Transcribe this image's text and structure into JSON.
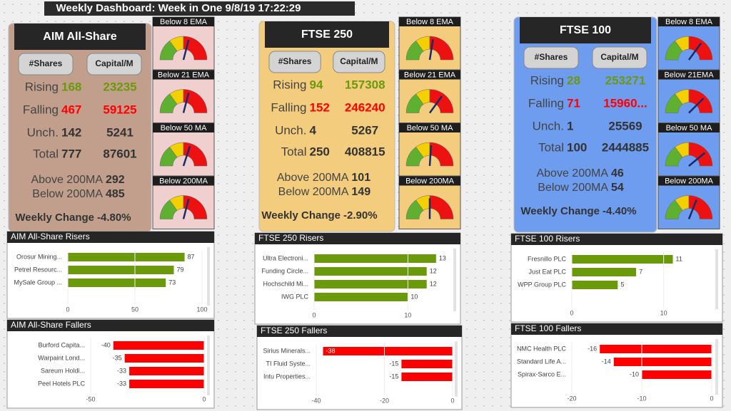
{
  "title": "Weekly Dashboard: Week in One 9/8/19 17:22:29",
  "gauge_range": [
    0,
    100
  ],
  "panels": [
    {
      "name": "AIM All-Share",
      "color": "#c29f8c",
      "gauge_color": "#f0cfcf",
      "col_shares": "#Shares",
      "col_capital": "Capital/M",
      "rows": [
        {
          "label": "Rising",
          "shares": 168,
          "capital": 23235
        },
        {
          "label": "Falling",
          "shares": 467,
          "capital": 59125
        },
        {
          "label": "Unch.",
          "shares": 142,
          "capital": 5241
        },
        {
          "label": "Total",
          "shares": 777,
          "capital": 87601
        }
      ],
      "above_label": "Above 200MA",
      "above": 292,
      "below_label": "Below 200MA",
      "below": 485,
      "change_label": "Weekly Change",
      "change": "-4.80%",
      "gauges": [
        {
          "label": "Below 8 EMA",
          "value": 58
        },
        {
          "label": "Below 21 EMA",
          "value": 58
        },
        {
          "label": "Below 50 MA",
          "value": 60
        },
        {
          "label": "Below 200MA",
          "value": 58
        }
      ]
    },
    {
      "name": "FTSE 250",
      "color": "#f3cd7d",
      "gauge_color": "#f3cd7d",
      "col_shares": "#Shares",
      "col_capital": "Capital/M",
      "rows": [
        {
          "label": "Rising",
          "shares": 94,
          "capital": 157308
        },
        {
          "label": "Falling",
          "shares": 152,
          "capital": 246240
        },
        {
          "label": "Unch.",
          "shares": 4,
          "capital": 5267
        },
        {
          "label": "Total",
          "shares": 250,
          "capital": 408815
        }
      ],
      "above_label": "Above 200MA",
      "above": 101,
      "below_label": "Below 200MA",
      "below": 149,
      "change_label": "Weekly Change",
      "change": "-2.90%",
      "gauges": [
        {
          "label": "Below 8 EMA",
          "value": 55
        },
        {
          "label": "Below 21 EMA",
          "value": 70
        },
        {
          "label": "Below 50 MA",
          "value": 52
        },
        {
          "label": "Below 200MA",
          "value": 50
        }
      ]
    },
    {
      "name": "FTSE 100",
      "color": "#6e9cef",
      "gauge_color": "#6e9cef",
      "col_shares": "#Shares",
      "col_capital": "Capital/M",
      "rows": [
        {
          "label": "Rising",
          "shares": 28,
          "capital": 253271
        },
        {
          "label": "Falling",
          "shares": 71,
          "capital": "15960..."
        },
        {
          "label": "Unch.",
          "shares": 1,
          "capital": 25569
        },
        {
          "label": "Total",
          "shares": 100,
          "capital": 2444885
        }
      ],
      "above_label": "Above 200MA",
      "above": 46,
      "below_label": "Below 200MA",
      "below": 54,
      "change_label": "Weekly Change",
      "change": "-4.40%",
      "gauges": [
        {
          "label": "Below 8 EMA",
          "value": 70
        },
        {
          "label": "Below 21EMA",
          "value": 75
        },
        {
          "label": "Below 50 MA",
          "value": 78
        },
        {
          "label": "Below 200MA",
          "value": 62
        }
      ]
    }
  ],
  "chart_data": [
    {
      "type": "bar",
      "title": "AIM All-Share Risers",
      "categories": [
        "Orosur Mining...",
        "Petrel Resourc...",
        "MySale Group ..."
      ],
      "values": [
        87,
        79,
        73
      ],
      "color": "#6a9a0a",
      "xlim": [
        0,
        100
      ],
      "xticks": [
        0,
        50,
        100
      ]
    },
    {
      "type": "bar",
      "title": "AIM All-Share Fallers",
      "categories": [
        "Burford Capita...",
        "Warpaint Lond...",
        "Sareum Holdi...",
        "Peel Hotels PLC"
      ],
      "values": [
        -40,
        -35,
        -33,
        -33
      ],
      "color": "#ff0000",
      "xlim": [
        -50,
        0
      ],
      "xticks": [
        -50,
        0
      ]
    },
    {
      "type": "bar",
      "title": "FTSE 250 Risers",
      "categories": [
        "Ultra Electroni...",
        "Funding Circle...",
        "Hochschild Mi...",
        "IWG PLC"
      ],
      "values": [
        13,
        12,
        12,
        10
      ],
      "color": "#6a9a0a",
      "xlim": [
        0,
        14
      ],
      "xticks": [
        0,
        10
      ]
    },
    {
      "type": "bar",
      "title": "FTSE 250 Fallers",
      "categories": [
        "Sirius Minerals...",
        "TI Fluid Syste...",
        "Intu Properties..."
      ],
      "values": [
        -38,
        -15,
        -15
      ],
      "color": "#ff0000",
      "xlim": [
        -40,
        0
      ],
      "xticks": [
        -40,
        -20,
        0
      ]
    },
    {
      "type": "bar",
      "title": "FTSE 100 Risers",
      "categories": [
        "Fresnillo PLC",
        "Just Eat PLC",
        "WPP Group PLC"
      ],
      "values": [
        11,
        7,
        5
      ],
      "color": "#6a9a0a",
      "xlim": [
        0,
        15
      ],
      "xticks": [
        0,
        10
      ]
    },
    {
      "type": "bar",
      "title": "FTSE 100 Fallers",
      "categories": [
        "NMC Health PLC",
        "Standard Life A...",
        "Spirax-Sarco E..."
      ],
      "values": [
        -16,
        -14,
        -10
      ],
      "color": "#ff0000",
      "xlim": [
        -20,
        0
      ],
      "xticks": [
        -20,
        -10,
        0
      ]
    }
  ]
}
